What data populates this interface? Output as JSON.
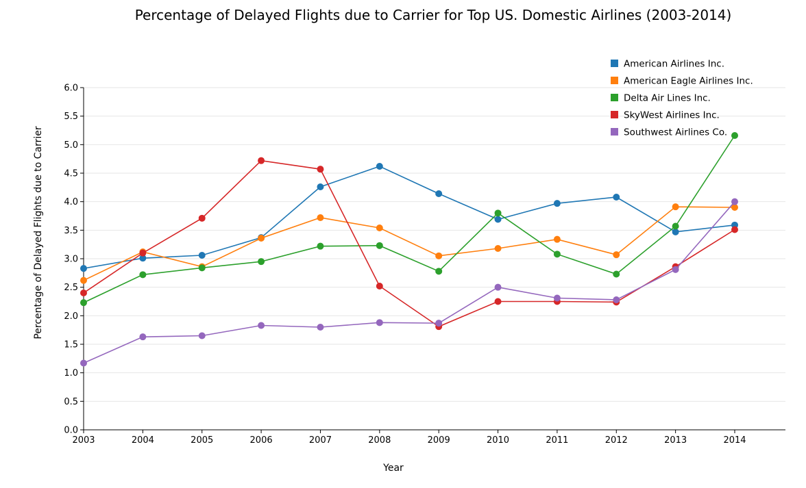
{
  "chart_data": {
    "type": "line",
    "title": "Percentage of Delayed Flights due to Carrier for Top US. Domestic Airlines (2003-2014)",
    "xlabel": "Year",
    "ylabel": "Percentage of Delayed Flights due to Carrier",
    "x": [
      "2003",
      "2004",
      "2005",
      "2006",
      "2007",
      "2008",
      "2009",
      "2010",
      "2011",
      "2012",
      "2013",
      "2014"
    ],
    "ylim": [
      0,
      6
    ],
    "yticks": [
      "0.0",
      "0.5",
      "1.0",
      "1.5",
      "2.0",
      "2.5",
      "3.0",
      "3.5",
      "4.0",
      "4.5",
      "5.0",
      "5.5",
      "6.0"
    ],
    "grid": true,
    "legend_position": "top-right",
    "series": [
      {
        "name": "American Airlines Inc.",
        "color": "#1f77b4",
        "values": [
          2.83,
          3.01,
          3.06,
          3.37,
          4.26,
          4.62,
          4.14,
          3.69,
          3.97,
          4.08,
          3.47,
          3.59
        ]
      },
      {
        "name": "American Eagle Airlines Inc.",
        "color": "#ff7f0e",
        "values": [
          2.62,
          3.12,
          2.86,
          3.36,
          3.72,
          3.54,
          3.05,
          3.18,
          3.34,
          3.07,
          3.91,
          3.9
        ]
      },
      {
        "name": "Delta Air Lines Inc.",
        "color": "#2ca02c",
        "values": [
          2.23,
          2.72,
          2.84,
          2.95,
          3.22,
          3.23,
          2.78,
          3.8,
          3.08,
          2.73,
          3.57,
          5.16
        ]
      },
      {
        "name": "SkyWest Airlines Inc.",
        "color": "#d62728",
        "values": [
          2.4,
          3.1,
          3.71,
          4.72,
          4.57,
          2.52,
          1.81,
          2.25,
          2.25,
          2.24,
          2.86,
          3.51
        ]
      },
      {
        "name": "Southwest Airlines Co.",
        "color": "#9467bd",
        "values": [
          1.17,
          1.63,
          1.65,
          1.83,
          1.8,
          1.88,
          1.87,
          2.5,
          2.31,
          2.28,
          2.81,
          4.0
        ]
      }
    ]
  }
}
